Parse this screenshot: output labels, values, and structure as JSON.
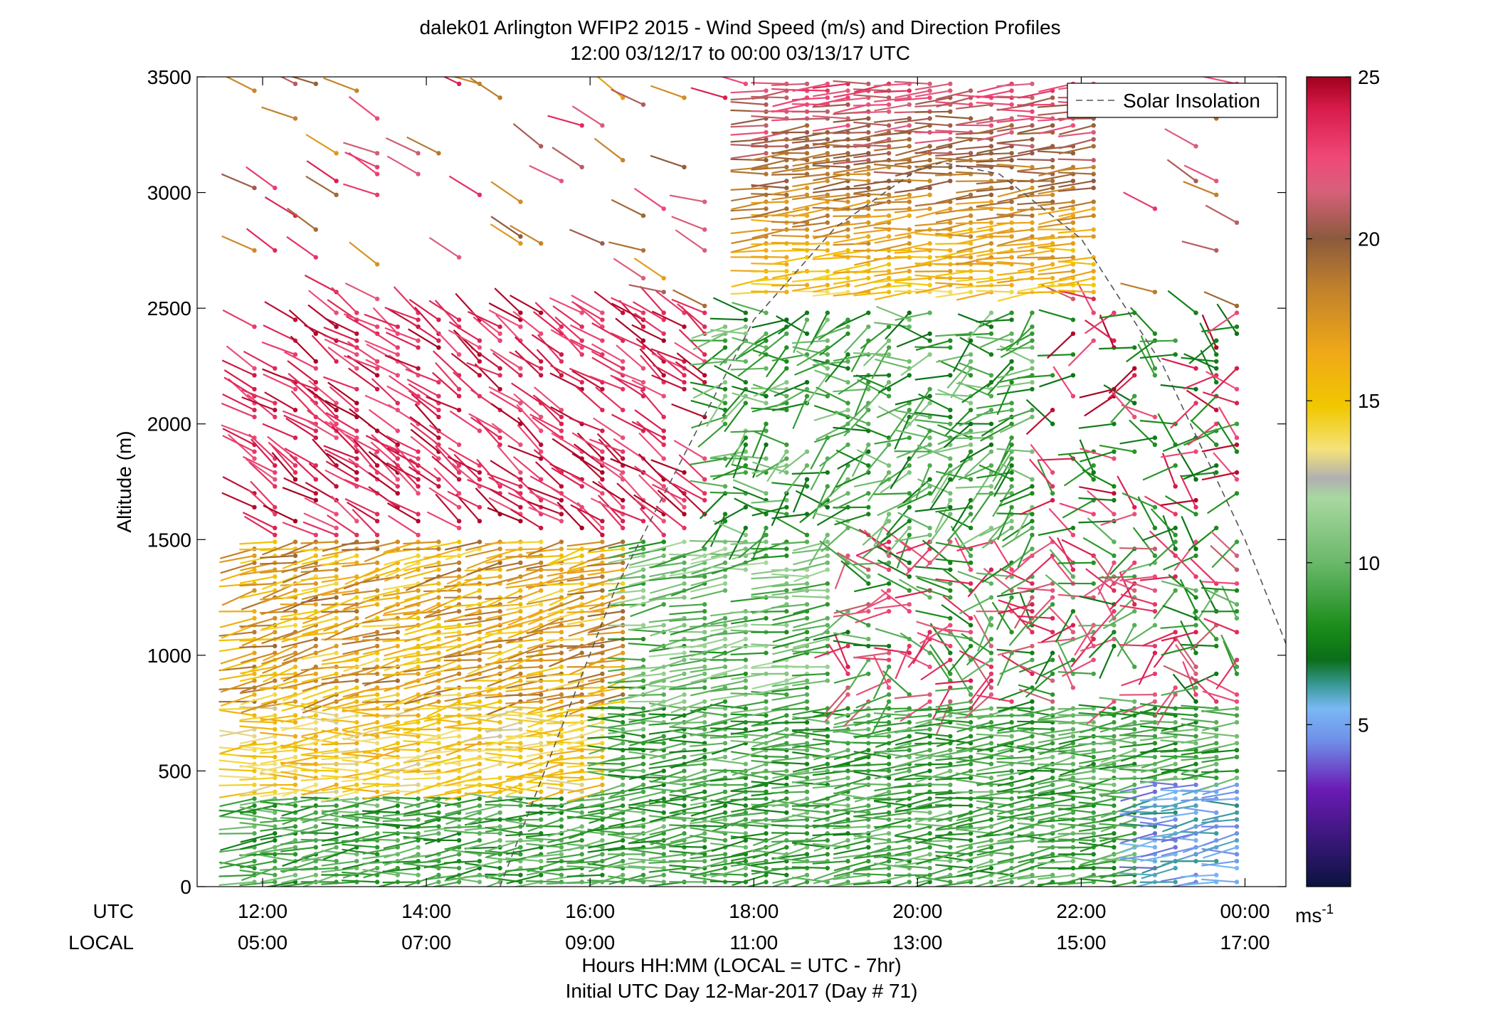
{
  "chart_data": {
    "type": "wind_barb_profile",
    "title": "dalek01 Arlington WFIP2 2015 - Wind Speed (m/s) and Direction Profiles",
    "subtitle": "12:00 03/12/17 to 00:00 03/13/17  UTC",
    "ylabel": "Altitude (m)",
    "xlabel": "Hours HH:MM  (LOCAL = UTC - 7hr)",
    "xlabel2": "Initial UTC Day 12-Mar-2017 (Day # 71)",
    "row_label_utc": "UTC",
    "row_label_local": "LOCAL",
    "ylim": [
      0,
      3500
    ],
    "y_ticks": [
      0,
      500,
      1000,
      1500,
      2000,
      2500,
      3000,
      3500
    ],
    "y_tick_labels": [
      "0",
      "500",
      "1000",
      "1500",
      "2000",
      "2500",
      "3000",
      "3500"
    ],
    "x_range_hours_utc": [
      11.2,
      24.5
    ],
    "x_ticks_hours_utc": [
      12,
      14,
      16,
      18,
      20,
      22,
      24
    ],
    "x_tick_labels_utc": [
      "12:00",
      "14:00",
      "16:00",
      "18:00",
      "20:00",
      "22:00",
      "00:00"
    ],
    "x_tick_labels_local": [
      "05:00",
      "07:00",
      "09:00",
      "11:00",
      "13:00",
      "15:00",
      "17:00"
    ],
    "legend": {
      "entries": [
        "Solar Insolation"
      ],
      "placement": "top-right"
    },
    "solar_insolation": {
      "style": "dashed",
      "color": "#555555",
      "points": [
        [
          14.9,
          0
        ],
        [
          15.5,
          550
        ],
        [
          16.3,
          1280
        ],
        [
          17.2,
          1900
        ],
        [
          18.0,
          2450
        ],
        [
          19.0,
          2850
        ],
        [
          20.0,
          3100
        ],
        [
          20.3,
          3130
        ],
        [
          21.0,
          3080
        ],
        [
          22.0,
          2800
        ],
        [
          23.0,
          2250
        ],
        [
          24.0,
          1500
        ],
        [
          24.5,
          1050
        ]
      ]
    },
    "colorbar": {
      "min": 0,
      "max": 25,
      "ticks": [
        5,
        10,
        15,
        20,
        25
      ],
      "tick_labels": [
        "5",
        "10",
        "15",
        "20",
        "25"
      ],
      "unit": "ms",
      "unit_exp": "-1",
      "stops": [
        [
          0,
          "#0b1340"
        ],
        [
          3,
          "#6a1bb5"
        ],
        [
          4.5,
          "#6f8fe8"
        ],
        [
          5.5,
          "#7ab8f5"
        ],
        [
          6.2,
          "#3a9a9a"
        ],
        [
          7,
          "#0b6e18"
        ],
        [
          8,
          "#1a8c1a"
        ],
        [
          10,
          "#6ab86a"
        ],
        [
          12,
          "#a8d8a0"
        ],
        [
          12.6,
          "#b0b0b0"
        ],
        [
          13.5,
          "#f5e27a"
        ],
        [
          14.8,
          "#f0c800"
        ],
        [
          16.5,
          "#f0a818"
        ],
        [
          18.5,
          "#c0802c"
        ],
        [
          20,
          "#8b5a3c"
        ],
        [
          21.5,
          "#d8607c"
        ],
        [
          22.5,
          "#f04878"
        ],
        [
          24,
          "#d81c4c"
        ],
        [
          25,
          "#a0001c"
        ]
      ]
    },
    "profiles": {
      "time_step_hours": 0.25,
      "t_start": 11.9,
      "t_end": 23.9,
      "altitude_step_m": 30,
      "description_keys": [
        "low-level green flow",
        "morning jet",
        "afternoon mixing",
        "upper level strong westerlies"
      ]
    }
  }
}
